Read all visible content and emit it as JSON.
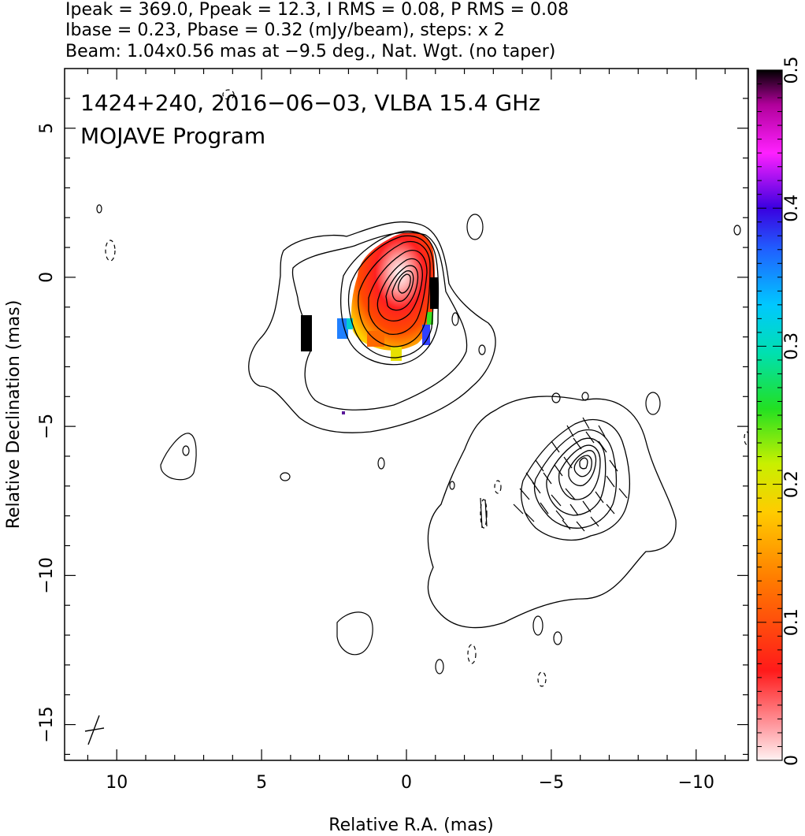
{
  "header": {
    "line1": "Ipeak = 369.0, Ppeak = 12.3, I RMS = 0.08, P RMS = 0.08",
    "line2": "Ibase = 0.23, Pbase = 0.32 (mJy/beam), steps: x 2",
    "line3": "Beam: 1.04x0.56 mas at −9.5 deg., Nat. Wgt. (no taper)"
  },
  "chart_data": {
    "type": "heatmap",
    "title": "1424+240, 2016−06−03, VLBA 15.4 GHz",
    "subtitle": "MOJAVE Program",
    "xlabel": "Relative R.A. (mas)",
    "ylabel": "Relative Declination (mas)",
    "xlim": [
      11.8,
      -11.8
    ],
    "ylim": [
      -16.2,
      7.0
    ],
    "x_ticks": [
      10,
      5,
      0,
      -5,
      -10
    ],
    "x_tick_labels": [
      "10",
      "5",
      "0",
      "−5",
      "−10"
    ],
    "y_ticks": [
      5,
      0,
      -5,
      -10,
      -15
    ],
    "y_tick_labels": [
      "5",
      "0",
      "−5",
      "−10",
      "−15"
    ],
    "colorbar": {
      "range": [
        0,
        0.5
      ],
      "ticks": [
        0,
        0.1,
        0.2,
        0.3,
        0.4,
        0.5
      ],
      "tick_labels": [
        "0",
        "0.1",
        "0.2",
        "0.3",
        "0.4",
        "0.5"
      ],
      "colormap": [
        "#fff2f2",
        "#ff9aa0",
        "#ff1a1a",
        "#ff7a00",
        "#ffcc00",
        "#c8f000",
        "#22e022",
        "#00e0b0",
        "#00c8ff",
        "#2060ff",
        "#3a00e0",
        "#ff20ff",
        "#b0009a",
        "#000000"
      ]
    },
    "contour_levels_mjy_per_beam": [
      0.23,
      0.46,
      0.92,
      1.84,
      3.68,
      7.36,
      14.72,
      29.44,
      58.88,
      117.76,
      235.52
    ],
    "sources": [
      {
        "component": "core",
        "ra_mas": 0.0,
        "dec_mas": 0.0,
        "peak_mJy_per_beam": 369.0
      },
      {
        "component": "jet",
        "ra_mas": -5.9,
        "dec_mas": -6.0
      }
    ],
    "beam": {
      "major_mas": 1.04,
      "minor_mas": 0.56,
      "pa_deg": -9.5,
      "ra_mas": 10.6,
      "dec_mas": -15.4
    },
    "grid": false,
    "legend": "colorbar-right"
  }
}
